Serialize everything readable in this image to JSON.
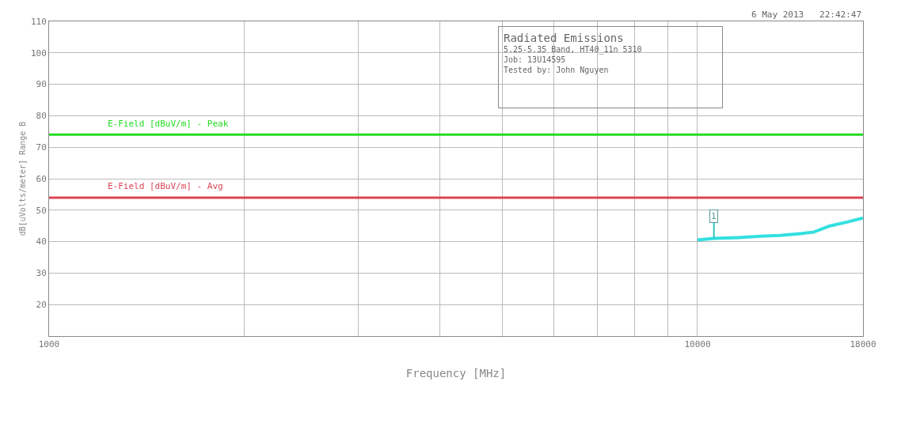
{
  "chart_data": {
    "type": "line",
    "title": "Radiated Emissions",
    "subtitle": "5.25-5.35 Band, HT40_11n 5310\nJob: 13U14595\nTested by: John Nguyen",
    "xlabel": "Frequency [MHz]",
    "ylabel": "dB[uVolts/meter] Range B",
    "log": "x",
    "xlim": [
      1000,
      18000
    ],
    "xticks": [
      1000,
      {
        "value": 2000,
        "label": null
      },
      {
        "value": 3000,
        "label": null
      },
      {
        "value": 4000,
        "label": null
      },
      {
        "value": 5000,
        "label": null
      },
      {
        "value": 6000,
        "label": null
      },
      {
        "value": 7000,
        "label": null
      },
      {
        "value": 8000,
        "label": null
      },
      {
        "value": 9000,
        "label": null
      },
      10000,
      18000
    ],
    "ylim": [
      10,
      110
    ],
    "yticks": [
      {
        "value": 10,
        "label": null
      },
      20,
      30,
      40,
      50,
      60,
      70,
      80,
      90,
      100,
      110
    ],
    "grid": true,
    "marker": "none",
    "line_style": "solid",
    "series": [
      {
        "color": "#33e0e0",
        "x": [
          10000,
          10600,
          11580,
          12500,
          13400,
          14300,
          15100,
          16000,
          17000,
          18000
        ],
        "values": [
          40.5,
          41,
          41.3,
          41.7,
          42,
          42.5,
          43,
          45,
          46.2,
          47.5
        ]
      }
    ],
    "ref_lines": [
      {
        "axis": "y",
        "value": 74,
        "label": "E-Field [dBuV/m] - Peak",
        "color": "#22dd22"
      },
      {
        "axis": "y",
        "value": 54,
        "label": "E-Field [dBuV/m] - Avg",
        "color": "#dd4455"
      }
    ],
    "annotations": [
      "6 May 2013   22:42:47",
      {
        "text": "1",
        "x": 10600,
        "y": 41
      }
    ]
  }
}
